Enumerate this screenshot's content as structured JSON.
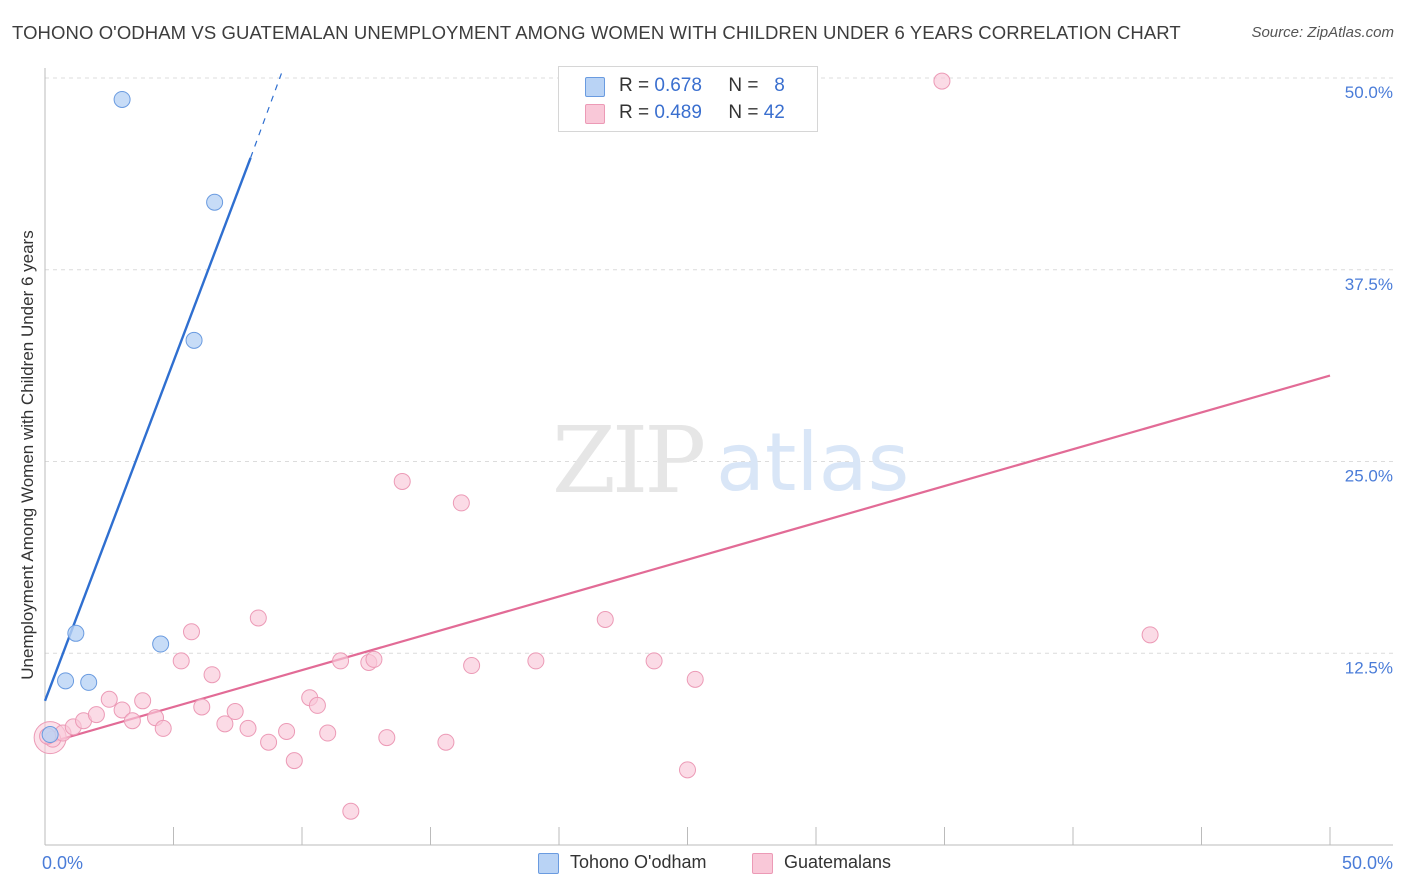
{
  "header": {
    "title": "TOHONO O'ODHAM VS GUATEMALAN UNEMPLOYMENT AMONG WOMEN WITH CHILDREN UNDER 6 YEARS CORRELATION CHART",
    "source": "Source: ZipAtlas.com"
  },
  "watermark": {
    "zip": "ZIP",
    "atlas": "atlas"
  },
  "legend": {
    "rows": [
      {
        "r_label": "R =",
        "r_value": "0.678",
        "n_label": "N =",
        "n_value": "8"
      },
      {
        "r_label": "R =",
        "r_value": "0.489",
        "n_label": "N =",
        "n_value": "42"
      }
    ]
  },
  "bottom_legend": {
    "series_a": "Tohono O'odham",
    "series_b": "Guatemalans"
  },
  "colors": {
    "tohono_fill": "#b9d3f5",
    "tohono_stroke": "#6a9be0",
    "tohono_line": "#2f6fd0",
    "guatemalan_fill": "#f9c8d8",
    "guatemalan_stroke": "#ec9ab6",
    "guatemalan_line": "#e26b96"
  },
  "chart_data": {
    "type": "scatter",
    "title": "TOHONO O'ODHAM VS GUATEMALAN UNEMPLOYMENT AMONG WOMEN WITH CHILDREN UNDER 6 YEARS CORRELATION CHART",
    "xlabel": "",
    "ylabel": "Unemployment Among Women with Children Under 6 years",
    "xlim": [
      0,
      50
    ],
    "ylim": [
      0,
      50
    ],
    "x_tick_labels": [
      "0.0%",
      "50.0%"
    ],
    "y_tick_labels": [
      "12.5%",
      "25.0%",
      "37.5%",
      "50.0%"
    ],
    "y_ticks": [
      12.5,
      25.0,
      37.5,
      50.0
    ],
    "series": [
      {
        "name": "Tohono O'odham",
        "R": 0.678,
        "N": 8,
        "points": [
          [
            0.2,
            7.2
          ],
          [
            0.8,
            10.7
          ],
          [
            1.2,
            13.8
          ],
          [
            1.7,
            10.6
          ],
          [
            3.0,
            48.6
          ],
          [
            4.5,
            13.1
          ],
          [
            5.8,
            32.9
          ],
          [
            6.6,
            41.9
          ]
        ],
        "trend": {
          "x0": 0.0,
          "y0": 9.4,
          "x1": 8.0,
          "y1": 44.8,
          "dash_x1": 9.2,
          "dash_y1": 50.3
        }
      },
      {
        "name": "Guatemalans",
        "R": 0.489,
        "N": 42,
        "points": [
          [
            0.3,
            6.9
          ],
          [
            0.7,
            7.3
          ],
          [
            1.1,
            7.7
          ],
          [
            1.5,
            8.1
          ],
          [
            2.0,
            8.5
          ],
          [
            2.5,
            9.5
          ],
          [
            3.0,
            8.8
          ],
          [
            3.4,
            8.1
          ],
          [
            3.8,
            9.4
          ],
          [
            4.3,
            8.3
          ],
          [
            4.6,
            7.6
          ],
          [
            5.3,
            12.0
          ],
          [
            5.7,
            13.9
          ],
          [
            6.1,
            9.0
          ],
          [
            6.5,
            11.1
          ],
          [
            7.0,
            7.9
          ],
          [
            7.4,
            8.7
          ],
          [
            7.9,
            7.6
          ],
          [
            8.3,
            14.8
          ],
          [
            8.7,
            6.7
          ],
          [
            9.4,
            7.4
          ],
          [
            9.7,
            5.5
          ],
          [
            10.3,
            9.6
          ],
          [
            10.6,
            9.1
          ],
          [
            11.0,
            7.3
          ],
          [
            11.5,
            12.0
          ],
          [
            11.9,
            2.2
          ],
          [
            12.6,
            11.9
          ],
          [
            12.8,
            12.1
          ],
          [
            13.3,
            7.0
          ],
          [
            13.9,
            23.7
          ],
          [
            15.6,
            6.7
          ],
          [
            16.2,
            22.3
          ],
          [
            16.6,
            11.7
          ],
          [
            19.1,
            12.0
          ],
          [
            21.8,
            14.7
          ],
          [
            23.7,
            12.0
          ],
          [
            25.0,
            4.9
          ],
          [
            25.3,
            10.8
          ],
          [
            34.9,
            49.8
          ],
          [
            43.0,
            13.7
          ],
          [
            0.1,
            7.1
          ]
        ],
        "trend": {
          "x0": 0.0,
          "y0": 6.6,
          "x1": 50.0,
          "y1": 30.6
        }
      }
    ],
    "legend_position": "top-center"
  }
}
